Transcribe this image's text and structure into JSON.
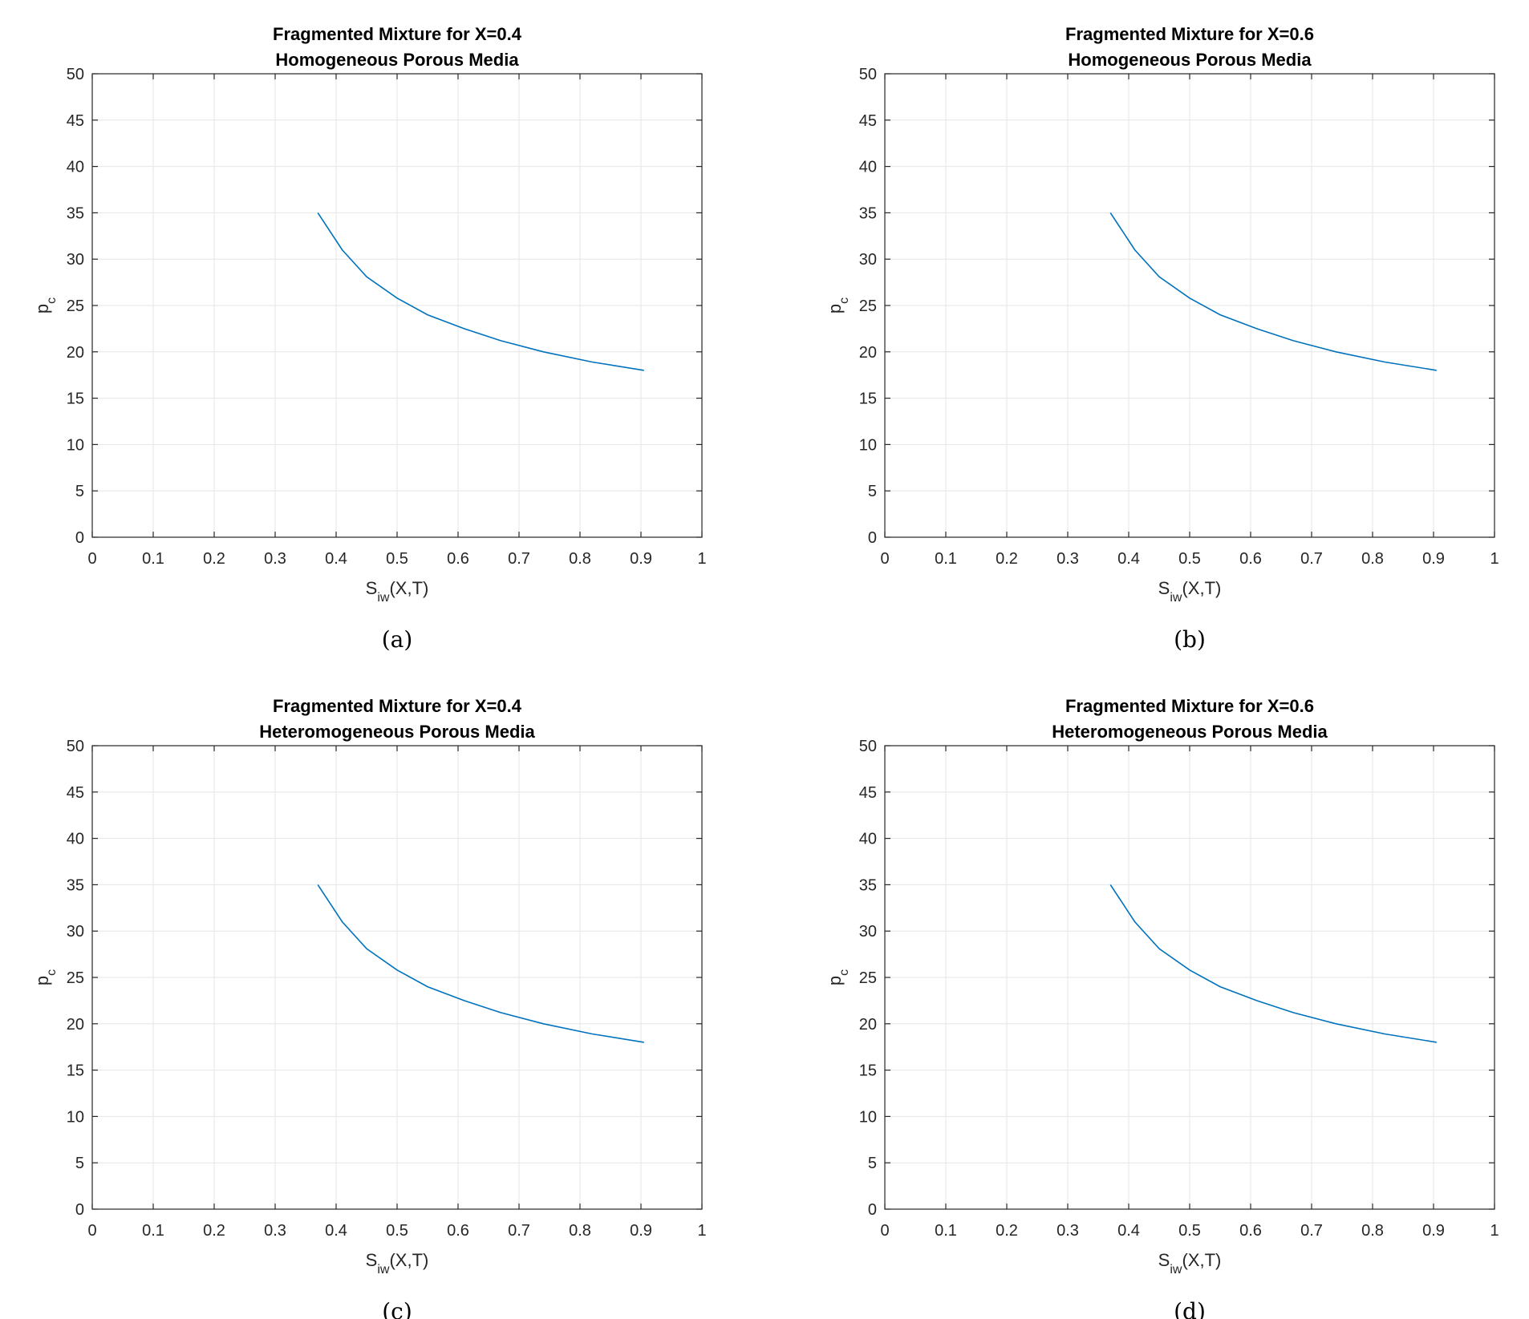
{
  "chart_data": [
    {
      "type": "line",
      "title": [
        "Fragmented Mixture for X=0.4",
        "Homogeneous Porous Media"
      ],
      "xlabel": {
        "base": "S",
        "sub": "iw",
        "rest": "(X,T)"
      },
      "ylabel": {
        "base": "p",
        "sub": "c"
      },
      "xlim": [
        0,
        1
      ],
      "ylim": [
        0,
        50
      ],
      "xticks": [
        "0",
        "0.1",
        "0.2",
        "0.3",
        "0.4",
        "0.5",
        "0.6",
        "0.7",
        "0.8",
        "0.9",
        "1"
      ],
      "yticks": [
        "0",
        "5",
        "10",
        "15",
        "20",
        "25",
        "30",
        "35",
        "40",
        "45",
        "50"
      ],
      "grid": true,
      "series": [
        {
          "color": "#0072BD",
          "x": [
            0.37,
            0.41,
            0.45,
            0.5,
            0.55,
            0.61,
            0.67,
            0.74,
            0.82,
            0.905
          ],
          "y": [
            35.0,
            31.0,
            28.1,
            25.8,
            24.0,
            22.5,
            21.2,
            20.0,
            18.9,
            18.0
          ]
        }
      ],
      "caption": "(a)"
    },
    {
      "type": "line",
      "title": [
        "Fragmented Mixture for X=0.6",
        "Homogeneous Porous Media"
      ],
      "xlabel": {
        "base": "S",
        "sub": "iw",
        "rest": "(X,T)"
      },
      "ylabel": {
        "base": "p",
        "sub": "c"
      },
      "xlim": [
        0,
        1
      ],
      "ylim": [
        0,
        50
      ],
      "xticks": [
        "0",
        "0.1",
        "0.2",
        "0.3",
        "0.4",
        "0.5",
        "0.6",
        "0.7",
        "0.8",
        "0.9",
        "1"
      ],
      "yticks": [
        "0",
        "5",
        "10",
        "15",
        "20",
        "25",
        "30",
        "35",
        "40",
        "45",
        "50"
      ],
      "grid": true,
      "series": [
        {
          "color": "#0072BD",
          "x": [
            0.37,
            0.41,
            0.45,
            0.5,
            0.55,
            0.61,
            0.67,
            0.74,
            0.82,
            0.905
          ],
          "y": [
            35.0,
            31.0,
            28.1,
            25.8,
            24.0,
            22.5,
            21.2,
            20.0,
            18.9,
            18.0
          ]
        }
      ],
      "caption": "(b)"
    },
    {
      "type": "line",
      "title": [
        "Fragmented Mixture for X=0.4",
        "Heteromogeneous Porous Media"
      ],
      "xlabel": {
        "base": "S",
        "sub": "iw",
        "rest": "(X,T)"
      },
      "ylabel": {
        "base": "p",
        "sub": "c"
      },
      "xlim": [
        0,
        1
      ],
      "ylim": [
        0,
        50
      ],
      "xticks": [
        "0",
        "0.1",
        "0.2",
        "0.3",
        "0.4",
        "0.5",
        "0.6",
        "0.7",
        "0.8",
        "0.9",
        "1"
      ],
      "yticks": [
        "0",
        "5",
        "10",
        "15",
        "20",
        "25",
        "30",
        "35",
        "40",
        "45",
        "50"
      ],
      "grid": true,
      "series": [
        {
          "color": "#0072BD",
          "x": [
            0.37,
            0.41,
            0.45,
            0.5,
            0.55,
            0.61,
            0.67,
            0.74,
            0.82,
            0.905
          ],
          "y": [
            35.0,
            31.0,
            28.1,
            25.8,
            24.0,
            22.5,
            21.2,
            20.0,
            18.9,
            18.0
          ]
        }
      ],
      "caption": "(c)"
    },
    {
      "type": "line",
      "title": [
        "Fragmented Mixture for X=0.6",
        "Heteromogeneous Porous Media"
      ],
      "xlabel": {
        "base": "S",
        "sub": "iw",
        "rest": "(X,T)"
      },
      "ylabel": {
        "base": "p",
        "sub": "c"
      },
      "xlim": [
        0,
        1
      ],
      "ylim": [
        0,
        50
      ],
      "xticks": [
        "0",
        "0.1",
        "0.2",
        "0.3",
        "0.4",
        "0.5",
        "0.6",
        "0.7",
        "0.8",
        "0.9",
        "1"
      ],
      "yticks": [
        "0",
        "5",
        "10",
        "15",
        "20",
        "25",
        "30",
        "35",
        "40",
        "45",
        "50"
      ],
      "grid": true,
      "series": [
        {
          "color": "#0072BD",
          "x": [
            0.37,
            0.41,
            0.45,
            0.5,
            0.55,
            0.61,
            0.67,
            0.74,
            0.82,
            0.905
          ],
          "y": [
            35.0,
            31.0,
            28.1,
            25.8,
            24.0,
            22.5,
            21.2,
            20.0,
            18.9,
            18.0
          ]
        }
      ],
      "caption": "(d)"
    }
  ]
}
